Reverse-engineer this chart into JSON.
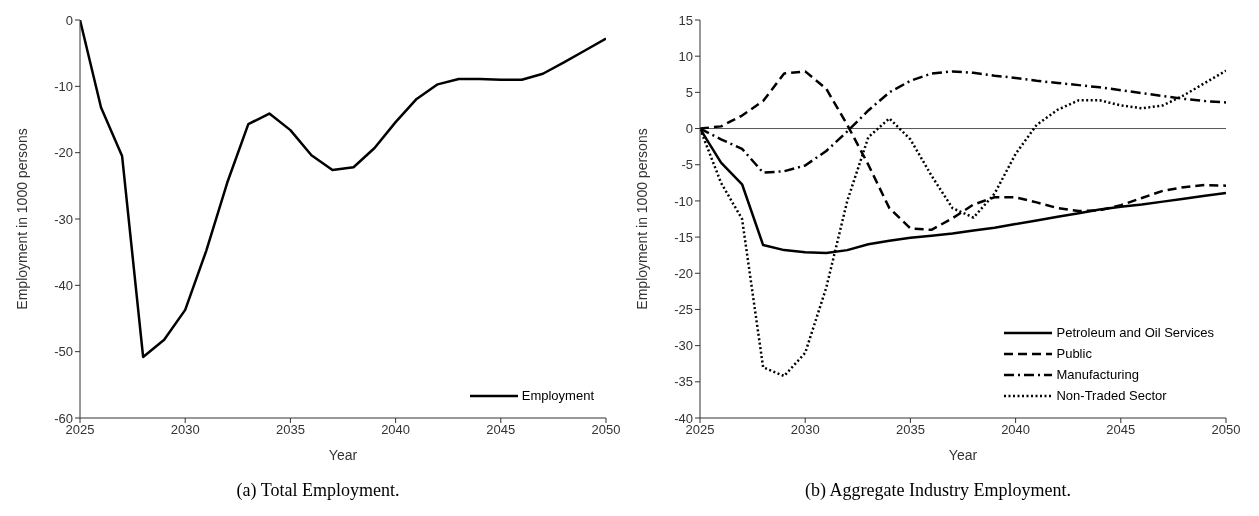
{
  "chart_data": [
    {
      "type": "line",
      "xlabel": "Year",
      "ylabel": "Employment in 1000 persons",
      "x": [
        2025,
        2026,
        2027,
        2028,
        2029,
        2030,
        2031,
        2032,
        2033,
        2034,
        2035,
        2036,
        2037,
        2038,
        2039,
        2040,
        2041,
        2042,
        2043,
        2044,
        2045,
        2046,
        2047,
        2048,
        2049,
        2050
      ],
      "series": [
        {
          "name": "Employment",
          "color": "#000000",
          "line_style": "solid",
          "values": [
            0,
            -13.2,
            -20.5,
            -50.8,
            -48.2,
            -43.7,
            -34.8,
            -24.5,
            -15.7,
            -14.1,
            -16.6,
            -20.4,
            -22.6,
            -22.2,
            -19.3,
            -15.4,
            -11.9,
            -9.7,
            -8.9,
            -8.9,
            -9.0,
            -9.0,
            -8.1,
            -6.4,
            -4.6,
            -2.8
          ]
        }
      ],
      "xlim": [
        2025,
        2050
      ],
      "xticks": [
        2025,
        2030,
        2035,
        2040,
        2045,
        2050
      ],
      "ylim": [
        -60,
        0
      ],
      "yticks": [
        -60,
        -50,
        -40,
        -30,
        -20,
        -10,
        0
      ],
      "legend": "bottom right",
      "marker": "none",
      "annotations": [
        "(a) Total Employment."
      ]
    },
    {
      "type": "line",
      "xlabel": "Year",
      "ylabel": "Employment in 1000 persons",
      "x": [
        2025,
        2026,
        2027,
        2028,
        2029,
        2030,
        2031,
        2032,
        2033,
        2034,
        2035,
        2036,
        2037,
        2038,
        2039,
        2040,
        2041,
        2042,
        2043,
        2044,
        2045,
        2046,
        2047,
        2048,
        2049,
        2050
      ],
      "series": [
        {
          "name": "Petroleum and Oil Services",
          "color": "#000000",
          "line_style": "solid",
          "values": [
            0,
            -4.7,
            -7.7,
            -16.1,
            -16.8,
            -17.1,
            -17.2,
            -16.8,
            -16.0,
            -15.5,
            -15.1,
            -14.8,
            -14.5,
            -14.1,
            -13.7,
            -13.2,
            -12.7,
            -12.2,
            -11.7,
            -11.2,
            -10.8,
            -10.5,
            -10.1,
            -9.7,
            -9.3,
            -8.9
          ]
        },
        {
          "name": "Public",
          "color": "#000000",
          "line_style": "dashed",
          "values": [
            0,
            0.3,
            1.8,
            3.8,
            7.6,
            7.9,
            5.5,
            0.5,
            -5.0,
            -11.0,
            -13.8,
            -14.0,
            -12.4,
            -10.5,
            -9.5,
            -9.5,
            -10.2,
            -11.0,
            -11.4,
            -11.3,
            -10.6,
            -9.6,
            -8.6,
            -8.1,
            -7.8,
            -7.9
          ]
        },
        {
          "name": "Manufacturing",
          "color": "#000000",
          "line_style": "dashdot",
          "values": [
            0,
            -1.5,
            -2.8,
            -6.1,
            -5.9,
            -5.1,
            -3.1,
            -0.4,
            2.5,
            5.0,
            6.6,
            7.6,
            7.9,
            7.7,
            7.3,
            7.0,
            6.6,
            6.3,
            6.0,
            5.7,
            5.3,
            4.9,
            4.5,
            4.1,
            3.8,
            3.6
          ]
        },
        {
          "name": "Non-Traded Sector",
          "color": "#000000",
          "line_style": "dotted",
          "values": [
            0,
            -7.5,
            -12.5,
            -33.0,
            -34.2,
            -31.0,
            -22.0,
            -10.0,
            -1.2,
            1.4,
            -1.5,
            -6.5,
            -11.0,
            -12.3,
            -9.0,
            -3.5,
            0.5,
            2.6,
            3.9,
            3.9,
            3.2,
            2.8,
            3.2,
            4.6,
            6.3,
            8.0
          ]
        }
      ],
      "xlim": [
        2025,
        2050
      ],
      "xticks": [
        2025,
        2030,
        2035,
        2040,
        2045,
        2050
      ],
      "ylim": [
        -40,
        15
      ],
      "yticks": [
        -40,
        -35,
        -30,
        -25,
        -20,
        -15,
        -10,
        -5,
        0,
        5,
        10,
        15
      ],
      "legend": "bottom right",
      "marker": "none",
      "ref_lines": [
        {
          "axis": "y",
          "value": 0,
          "color": "#555555"
        }
      ],
      "annotations": [
        "(b) Aggregate Industry Employment."
      ]
    }
  ]
}
